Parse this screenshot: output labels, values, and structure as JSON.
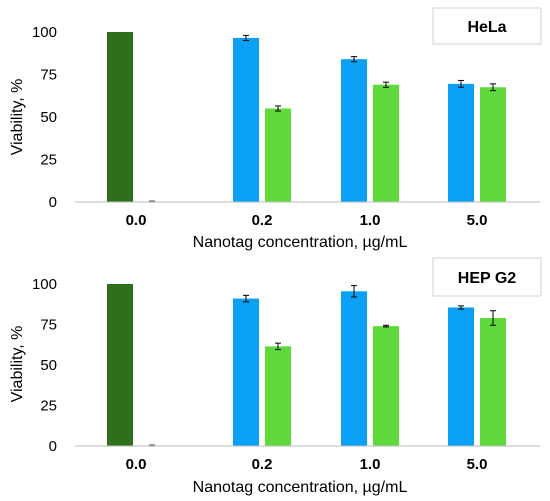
{
  "colors": {
    "control": "#2f6e1a",
    "blue": "#0aa0f6",
    "green": "#5fd93b",
    "axis": "#222222",
    "legend_border": "#d0d0d0"
  },
  "chart_data": [
    {
      "type": "bar",
      "title": "",
      "legend_box": "HeLa",
      "legend_placement": "top-right",
      "xlabel": "Nanotag concentration, µg/mL",
      "ylabel": "Viability, %",
      "ylim": [
        0,
        100
      ],
      "yticks": [
        0,
        25,
        50,
        75,
        100
      ],
      "grid": false,
      "categories": [
        "0.0",
        "0.2",
        "1.0",
        "5.0"
      ],
      "series": [
        {
          "color_key": "blue",
          "values": [
            100,
            96.5,
            84,
            69.5
          ],
          "errors": [
            0,
            1.5,
            1.5,
            2
          ]
        },
        {
          "color_key": "green",
          "values": [
            0,
            55,
            69,
            67.5
          ],
          "errors": [
            0,
            1.5,
            1.5,
            2
          ]
        }
      ],
      "control_color_key": "control"
    },
    {
      "type": "bar",
      "title": "",
      "legend_box": "HEP G2",
      "legend_placement": "top-right",
      "xlabel": "Nanotag concentration, µg/mL",
      "ylabel": "Viability, %",
      "ylim": [
        0,
        100
      ],
      "yticks": [
        0,
        25,
        50,
        75,
        100
      ],
      "grid": false,
      "categories": [
        "0.0",
        "0.2",
        "1.0",
        "5.0"
      ],
      "series": [
        {
          "color_key": "blue",
          "values": [
            100,
            91,
            95.5,
            85.5
          ],
          "errors": [
            0,
            2,
            3.5,
            1
          ]
        },
        {
          "color_key": "green",
          "values": [
            0,
            61.5,
            74,
            79
          ],
          "errors": [
            0,
            2,
            0.5,
            4.5
          ]
        }
      ],
      "control_color_key": "control"
    }
  ]
}
